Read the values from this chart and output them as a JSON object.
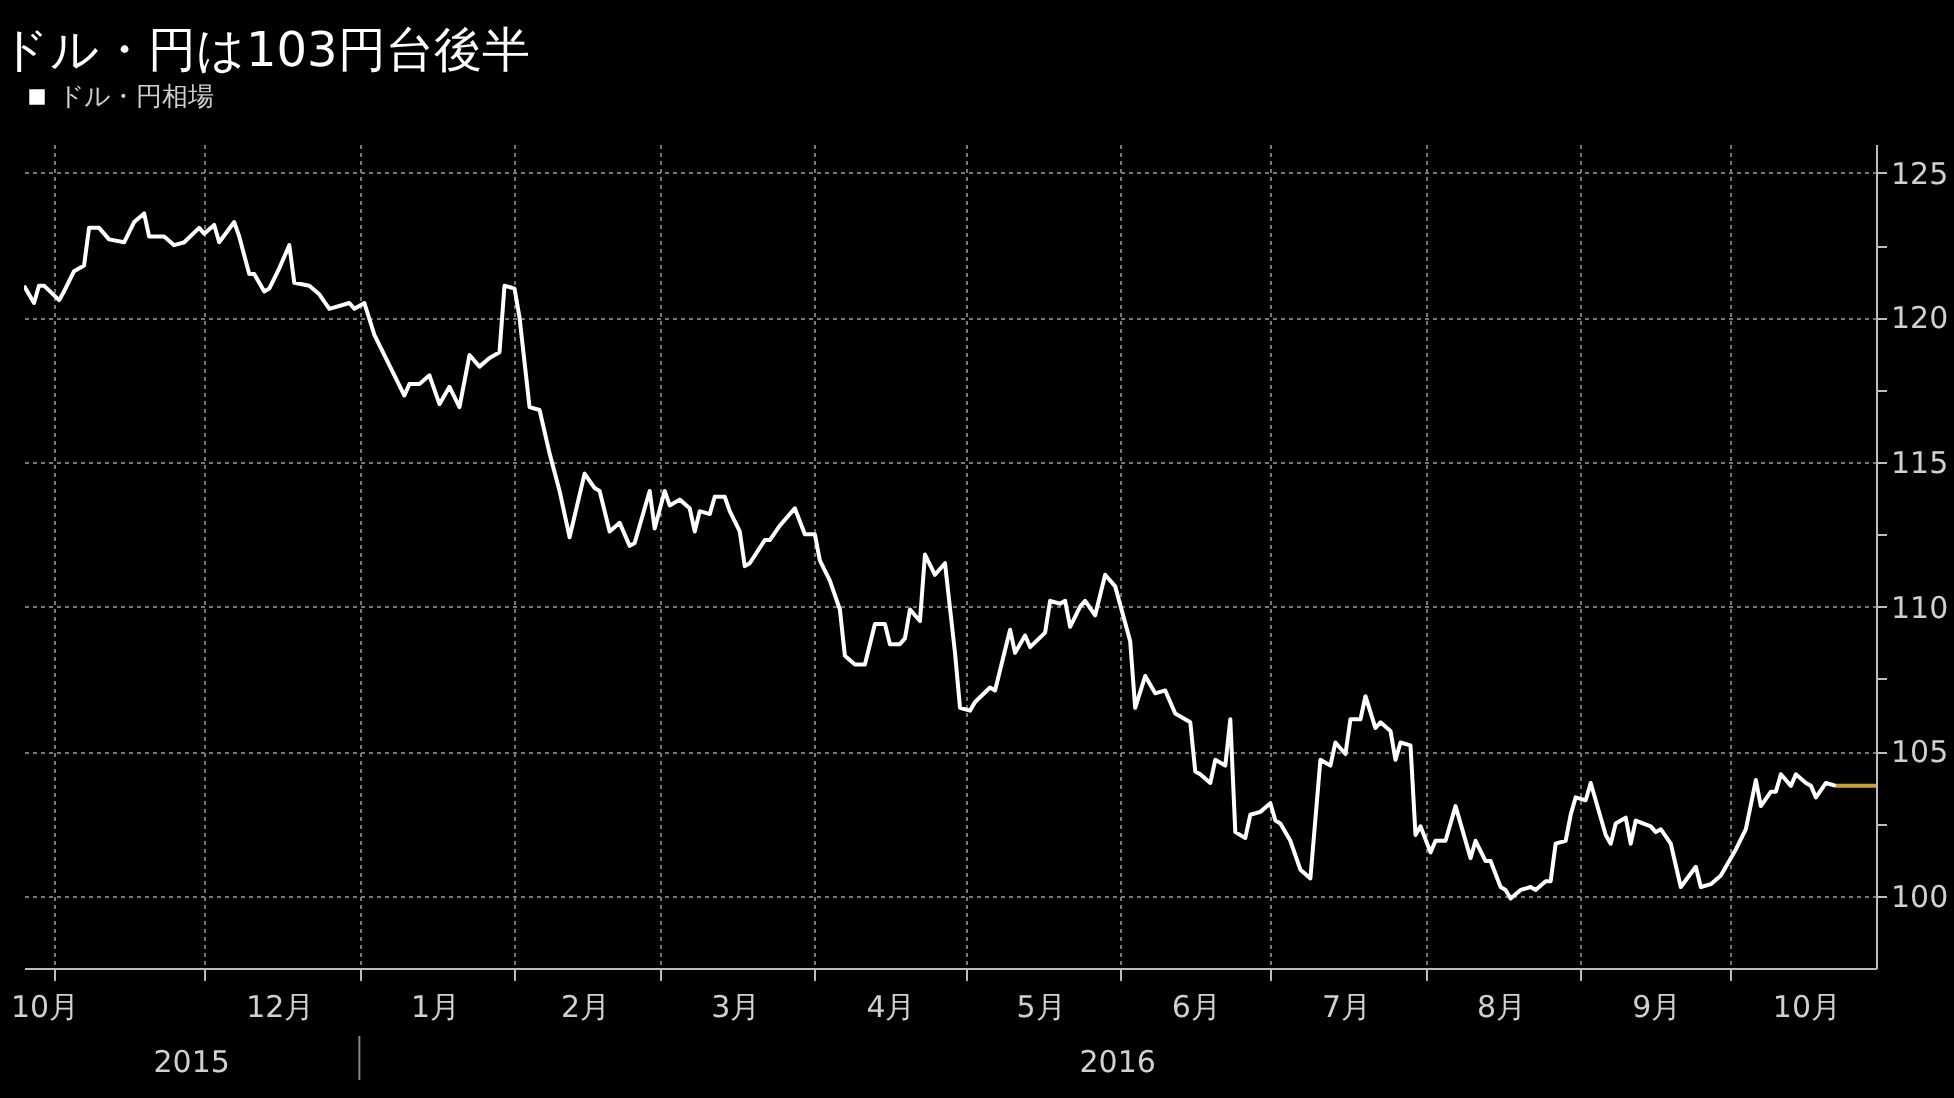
{
  "chart_data": {
    "type": "line",
    "title": "ドル・円は103円台後半",
    "x": [
      "2015-10-26",
      "2015-10-28",
      "2015-10-29",
      "2015-10-30",
      "2015-11-02",
      "2015-11-03",
      "2015-11-05",
      "2015-11-07",
      "2015-11-08",
      "2015-11-10",
      "2015-11-12",
      "2015-11-15",
      "2015-11-17",
      "2015-11-19",
      "2015-11-20",
      "2015-11-23",
      "2015-11-25",
      "2015-11-27",
      "2015-11-30",
      "2015-12-01",
      "2015-12-03",
      "2015-12-04",
      "2015-12-07",
      "2015-12-08",
      "2015-12-10",
      "2015-12-11",
      "2015-12-13",
      "2015-12-14",
      "2015-12-16",
      "2015-12-18",
      "2015-12-19",
      "2015-12-22",
      "2015-12-24",
      "2015-12-26",
      "2015-12-30",
      "2015-12-31",
      "2016-01-02",
      "2016-01-04",
      "2016-01-06",
      "2016-01-10",
      "2016-01-11",
      "2016-01-13",
      "2016-01-15",
      "2016-01-17",
      "2016-01-19",
      "2016-01-21",
      "2016-01-23",
      "2016-01-25",
      "2016-01-27",
      "2016-01-29",
      "2016-01-30",
      "2016-02-01",
      "2016-02-02",
      "2016-02-04",
      "2016-02-06",
      "2016-02-08",
      "2016-02-10",
      "2016-02-12",
      "2016-02-15",
      "2016-02-17",
      "2016-02-18",
      "2016-02-20",
      "2016-02-22",
      "2016-02-24",
      "2016-02-25",
      "2016-02-28",
      "2016-02-29",
      "2016-03-02",
      "2016-03-03",
      "2016-03-05",
      "2016-03-07",
      "2016-03-08",
      "2016-03-09",
      "2016-03-11",
      "2016-03-12",
      "2016-03-14",
      "2016-03-15",
      "2016-03-17",
      "2016-03-18",
      "2016-03-19",
      "2016-03-22",
      "2016-03-23",
      "2016-03-25",
      "2016-03-28",
      "2016-03-30",
      "2016-04-01",
      "2016-04-02",
      "2016-04-04",
      "2016-04-06",
      "2016-04-07",
      "2016-04-09",
      "2016-04-11",
      "2016-04-13",
      "2016-04-15",
      "2016-04-16",
      "2016-04-18",
      "2016-04-19",
      "2016-04-20",
      "2016-04-22",
      "2016-04-23",
      "2016-04-25",
      "2016-04-27",
      "2016-04-29",
      "2016-04-30",
      "2016-05-02",
      "2016-05-03",
      "2016-05-06",
      "2016-05-07",
      "2016-05-10",
      "2016-05-11",
      "2016-05-13",
      "2016-05-14",
      "2016-05-17",
      "2016-05-18",
      "2016-05-20",
      "2016-05-21",
      "2016-05-22",
      "2016-05-24",
      "2016-05-25",
      "2016-05-27",
      "2016-05-29",
      "2016-05-31",
      "2016-06-03",
      "2016-06-04",
      "2016-06-06",
      "2016-06-08",
      "2016-06-10",
      "2016-06-12",
      "2016-06-15",
      "2016-06-16",
      "2016-06-17",
      "2016-06-19",
      "2016-06-20",
      "2016-06-22",
      "2016-06-23",
      "2016-06-24",
      "2016-06-26",
      "2016-06-27",
      "2016-06-29",
      "2016-07-01",
      "2016-07-02",
      "2016-07-03",
      "2016-07-05",
      "2016-07-07",
      "2016-07-09",
      "2016-07-11",
      "2016-07-13",
      "2016-07-14",
      "2016-07-16",
      "2016-07-17",
      "2016-07-19",
      "2016-07-20",
      "2016-07-22",
      "2016-07-23",
      "2016-07-25",
      "2016-07-26",
      "2016-07-27",
      "2016-07-29",
      "2016-07-30",
      "2016-07-31",
      "2016-08-02",
      "2016-08-03",
      "2016-08-05",
      "2016-08-07",
      "2016-08-10",
      "2016-08-11",
      "2016-08-13",
      "2016-08-14",
      "2016-08-16",
      "2016-08-17",
      "2016-08-18",
      "2016-08-20",
      "2016-08-22",
      "2016-08-23",
      "2016-08-25",
      "2016-08-26",
      "2016-08-27",
      "2016-08-29",
      "2016-08-30",
      "2016-08-31",
      "2016-09-02",
      "2016-09-03",
      "2016-09-04",
      "2016-09-06",
      "2016-09-07",
      "2016-09-08",
      "2016-09-10",
      "2016-09-11",
      "2016-09-12",
      "2016-09-15",
      "2016-09-16",
      "2016-09-17",
      "2016-09-19",
      "2016-09-21",
      "2016-09-24",
      "2016-09-25",
      "2016-09-27",
      "2016-09-29",
      "2016-10-02",
      "2016-10-04",
      "2016-10-06",
      "2016-10-07",
      "2016-10-09",
      "2016-10-10",
      "2016-10-11",
      "2016-10-13",
      "2016-10-14",
      "2016-10-16",
      "2016-10-17",
      "2016-10-18",
      "2016-10-20",
      "2016-10-22"
    ],
    "series": [
      {
        "name": "ドル・円相場",
        "color": "#ffffff",
        "values": [
          121.1,
          120.5,
          121.1,
          121.1,
          120.6,
          120.9,
          121.6,
          121.8,
          123.1,
          123.1,
          122.7,
          122.6,
          123.3,
          123.6,
          122.8,
          122.8,
          122.5,
          122.6,
          123.1,
          122.9,
          123.2,
          122.6,
          123.3,
          122.8,
          121.5,
          121.5,
          120.9,
          121.0,
          121.7,
          122.5,
          121.2,
          121.1,
          120.8,
          120.3,
          120.5,
          120.3,
          120.5,
          119.4,
          118.7,
          117.3,
          117.7,
          117.7,
          118.0,
          117.0,
          117.6,
          116.9,
          118.7,
          118.3,
          118.6,
          118.8,
          121.1,
          121.0,
          120.0,
          116.9,
          116.8,
          115.3,
          114.0,
          112.4,
          114.6,
          114.1,
          114.0,
          112.6,
          112.9,
          112.1,
          112.2,
          114.0,
          112.7,
          114.0,
          113.5,
          113.7,
          113.4,
          112.6,
          113.3,
          113.2,
          113.8,
          113.8,
          113.3,
          112.6,
          111.4,
          111.5,
          112.3,
          112.3,
          112.8,
          113.4,
          112.5,
          112.5,
          111.6,
          110.9,
          109.9,
          108.3,
          108.0,
          108.0,
          109.4,
          109.4,
          108.7,
          108.7,
          108.9,
          109.9,
          109.5,
          111.8,
          111.1,
          111.5,
          108.4,
          106.5,
          106.4,
          106.7,
          107.2,
          107.1,
          109.2,
          108.4,
          109.0,
          108.6,
          109.1,
          110.2,
          110.1,
          110.2,
          109.3,
          110.0,
          110.2,
          109.7,
          111.1,
          110.7,
          108.8,
          106.5,
          107.6,
          107.0,
          107.1,
          106.3,
          106.0,
          104.3,
          104.2,
          103.9,
          104.7,
          104.5,
          106.1,
          102.2,
          102.0,
          102.8,
          102.9,
          103.2,
          102.6,
          102.5,
          101.9,
          100.9,
          100.6,
          104.7,
          104.5,
          105.3,
          104.9,
          106.1,
          106.1,
          106.9,
          105.8,
          106.0,
          105.7,
          104.7,
          105.3,
          105.2,
          102.1,
          102.4,
          101.5,
          101.9,
          101.9,
          103.1,
          101.3,
          101.9,
          101.2,
          101.2,
          100.3,
          100.2,
          99.9,
          100.2,
          100.3,
          100.2,
          100.5,
          100.5,
          101.8,
          101.9,
          102.8,
          103.4,
          103.3,
          103.9,
          103.3,
          102.1,
          101.8,
          102.5,
          102.7,
          101.8,
          102.6,
          102.4,
          102.2,
          102.3,
          101.8,
          100.3,
          101.0,
          100.3,
          100.4,
          100.7,
          101.6,
          102.3,
          104.0,
          103.1,
          103.6,
          103.6,
          104.2,
          103.8,
          104.2,
          103.9,
          103.8,
          103.4,
          103.9,
          103.8
        ]
      },
      {
        "color": "#c8a040",
        "x": [
          "2016-10-22",
          "2016-10-30"
        ],
        "values": [
          103.8,
          103.8
        ]
      }
    ],
    "xlim": [
      "2015-10-26",
      "2016-10-30"
    ],
    "xticks": [
      {
        "value": "2015-10-30",
        "label": "10月"
      },
      {
        "value": "2015-11-01",
        "label": null
      },
      {
        "value": "2015-12-01",
        "label": null
      },
      {
        "value": "2015-12-16",
        "label": "12月"
      },
      {
        "value": "2016-01-01",
        "label": null
      },
      {
        "value": "2016-01-16",
        "label": "1月"
      },
      {
        "value": "2016-02-01",
        "label": null
      },
      {
        "value": "2016-02-15",
        "label": "2月"
      },
      {
        "value": "2016-03-01",
        "label": null
      },
      {
        "value": "2016-03-16",
        "label": "3月"
      },
      {
        "value": "2016-04-01",
        "label": null
      },
      {
        "value": "2016-04-16",
        "label": "4月"
      },
      {
        "value": "2016-05-01",
        "label": null
      },
      {
        "value": "2016-05-16",
        "label": "5月"
      },
      {
        "value": "2016-06-01",
        "label": null
      },
      {
        "value": "2016-06-16",
        "label": "6月"
      },
      {
        "value": "2016-07-01",
        "label": null
      },
      {
        "value": "2016-07-16",
        "label": "7月"
      },
      {
        "value": "2016-08-01",
        "label": null
      },
      {
        "value": "2016-08-16",
        "label": "8月"
      },
      {
        "value": "2016-09-01",
        "label": null
      },
      {
        "value": "2016-09-16",
        "label": "9月"
      },
      {
        "value": "2016-10-01",
        "label": null
      },
      {
        "value": "2016-10-16",
        "label": "10月"
      }
    ],
    "ylim": [
      97.5,
      126
    ],
    "yticks": [
      100,
      {
        "value": 102.5,
        "label": null
      },
      105,
      {
        "value": 107.5,
        "label": null
      },
      110,
      {
        "value": 112.5,
        "label": null
      },
      115,
      {
        "value": 117.5,
        "label": null
      },
      120,
      {
        "value": 122.5,
        "label": null
      },
      125
    ],
    "annotations": [
      "2015",
      "2016"
    ],
    "grid": true,
    "legend": "top left"
  }
}
